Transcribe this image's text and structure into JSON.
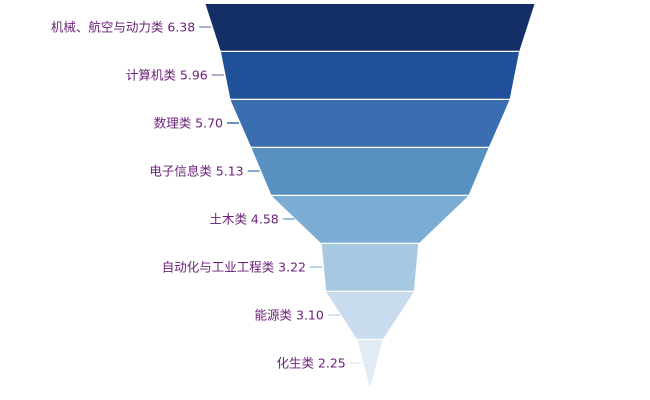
{
  "chart_data": {
    "type": "funnel",
    "sort": "descending",
    "categories": [
      "机械、航空与动力类",
      "计算机类",
      "数理类",
      "电子信息类",
      "土木类",
      "自动化与工业工程类",
      "能源类",
      "化生类"
    ],
    "values": [
      6.38,
      5.96,
      5.7,
      5.13,
      4.58,
      3.22,
      3.1,
      2.25
    ],
    "labels": [
      "机械、航空与动力类 6.38",
      "计算机类 5.96",
      "数理类 5.70",
      "电子信息类 5.13",
      "土木类 4.58",
      "自动化与工业工程类 3.22",
      "能源类 3.10",
      "化生类 2.25"
    ],
    "colors": [
      "#142f66",
      "#21509a",
      "#3a6eb0",
      "#5890c1",
      "#7badd4",
      "#a6c8e1",
      "#c9dbee",
      "#e1ebf6"
    ],
    "label_color": "#6b1e78",
    "label_position": "left"
  }
}
